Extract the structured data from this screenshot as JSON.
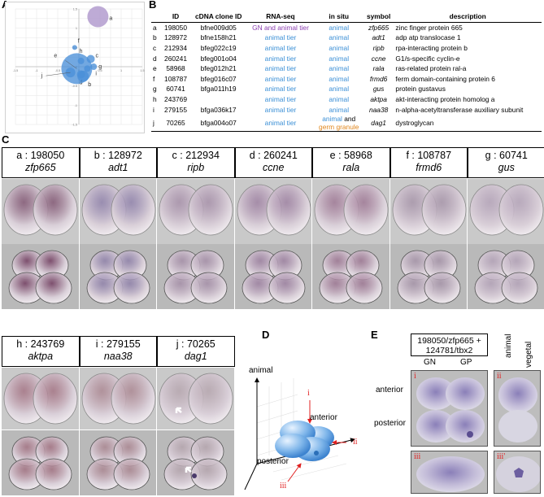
{
  "panel_labels": {
    "A": "A",
    "B": "B",
    "C": "C",
    "D": "D",
    "E": "E"
  },
  "chart_data": {
    "type": "scatter",
    "title": "",
    "xlabel": "",
    "ylabel": "",
    "xlim": [
      -1.5,
      1.5
    ],
    "ylim": [
      -1.5,
      1.5
    ],
    "x_ticks": [
      "-1.5",
      "-1",
      "-0.5",
      "0",
      "0.5",
      "1",
      "1.5"
    ],
    "y_ticks": [
      "1.5",
      "1",
      "0.5",
      "0",
      "-0.5",
      "-1",
      "-1.5"
    ],
    "grid": true,
    "points": [
      {
        "label": "a",
        "x": 0.45,
        "y": 1.3,
        "size": 12,
        "color": "#b39ccf"
      },
      {
        "label": "b",
        "x": 0.1,
        "y": -0.25,
        "size": 6,
        "color": "#4a90d9"
      },
      {
        "label": "c",
        "x": 0.28,
        "y": 0.2,
        "size": 4,
        "color": "#4a90d9"
      },
      {
        "label": "d",
        "x": 0.05,
        "y": -0.2,
        "size": 4,
        "color": "#4a90d9"
      },
      {
        "label": "e",
        "x": -0.05,
        "y": -0.05,
        "size": 18,
        "color": "#4a90d9"
      },
      {
        "label": "f",
        "x": -0.1,
        "y": 0.5,
        "size": 2,
        "color": "#4a90d9"
      },
      {
        "label": "g",
        "x": 0.35,
        "y": 0.0,
        "size": 3,
        "color": "#4a90d9"
      },
      {
        "label": "h",
        "x": 0.05,
        "y": 0.15,
        "size": 3,
        "color": "#4a90d9"
      },
      {
        "label": "i",
        "x": 0.2,
        "y": -0.05,
        "size": 3,
        "color": "#4a90d9"
      },
      {
        "label": "j",
        "x": -0.2,
        "y": -0.15,
        "size": 5,
        "color": "#4a90d9"
      }
    ]
  },
  "table": {
    "headers": [
      "",
      "ID",
      "cDNA clone ID",
      "RNA-seq",
      "in situ",
      "symbol",
      "description"
    ],
    "rows": [
      {
        "letter": "a",
        "id": "198050",
        "clone": "bfne009d05",
        "rnaseq": "GN and animal tier",
        "rnaseq_color": "purple",
        "insitu": "animal",
        "symbol": "zfp665",
        "description": "zinc finger protein 665"
      },
      {
        "letter": "b",
        "id": "128972",
        "clone": "bfne158h21",
        "rnaseq": "animal tier",
        "rnaseq_color": "blue",
        "insitu": "animal",
        "symbol": "adt1",
        "description": "adp atp translocase 1"
      },
      {
        "letter": "c",
        "id": "212934",
        "clone": "bfeg022c19",
        "rnaseq": "animal tier",
        "rnaseq_color": "blue",
        "insitu": "animal",
        "symbol": "ripb",
        "description": "rpa-interacting protein b"
      },
      {
        "letter": "d",
        "id": "260241",
        "clone": "bfeg001o04",
        "rnaseq": "animal tier",
        "rnaseq_color": "blue",
        "insitu": "animal",
        "symbol": "ccne",
        "description": "G1/s-specific cyclin-e"
      },
      {
        "letter": "e",
        "id": "58968",
        "clone": "bfeg012h21",
        "rnaseq": "animal tier",
        "rnaseq_color": "blue",
        "insitu": "animal",
        "symbol": "rala",
        "description": "ras-related protein ral-a"
      },
      {
        "letter": "f",
        "id": "108787",
        "clone": "bfeg016c07",
        "rnaseq": "animal tier",
        "rnaseq_color": "blue",
        "insitu": "animal",
        "symbol": "frmd6",
        "description": "ferm domain-containing protein 6"
      },
      {
        "letter": "g",
        "id": "60741",
        "clone": "bfga011h19",
        "rnaseq": "animal tier",
        "rnaseq_color": "blue",
        "insitu": "animal",
        "symbol": "gus",
        "description": "protein gustavus"
      },
      {
        "letter": "h",
        "id": "243769",
        "clone": "",
        "rnaseq": "animal tier",
        "rnaseq_color": "blue",
        "insitu": "animal",
        "symbol": "aktpa",
        "description": "akt-interacting protein homolog a"
      },
      {
        "letter": "i",
        "id": "279155",
        "clone": "bfga036k17",
        "rnaseq": "animal tier",
        "rnaseq_color": "blue",
        "insitu": "animal",
        "symbol": "naa38",
        "description": "n-alpha-acetyltransferase auxiliary subunit"
      }
    ],
    "last_row": {
      "letter": "j",
      "id": "70265",
      "clone": "bfga004o07",
      "rnaseq": "animal tier",
      "insitu_line1": "animal",
      "insitu_and": "and",
      "insitu_line2": "germ granule",
      "symbol": "dag1",
      "description": "dystroglycan"
    }
  },
  "panelC": {
    "row1": [
      {
        "id": "a : 198050",
        "sym": "zfp665"
      },
      {
        "id": "b : 128972",
        "sym": "adt1"
      },
      {
        "id": "c : 212934",
        "sym": "ripb"
      },
      {
        "id": "d : 260241",
        "sym": "ccne"
      },
      {
        "id": "e : 58968",
        "sym": "rala"
      },
      {
        "id": "f : 108787",
        "sym": "frmd6"
      },
      {
        "id": "g : 60741",
        "sym": "gus"
      }
    ],
    "row2": [
      {
        "id": "h : 243769",
        "sym": "aktpa"
      },
      {
        "id": "i : 279155",
        "sym": "naa38"
      },
      {
        "id": "j : 70265",
        "sym": "dag1"
      }
    ]
  },
  "panelD": {
    "animal": "animal",
    "anterior": "anterior",
    "posterior": "posterior",
    "i": "i",
    "ii": "ii",
    "iii": "iii"
  },
  "panelE": {
    "title_line1": "198050/zfp665 +",
    "title_line2": "124781/tbx2",
    "gn": "GN",
    "gp": "GP",
    "animal": "animal",
    "vegetal": "vegetal",
    "anterior": "anterior",
    "posterior": "posterior",
    "i": "i",
    "ii": "ii",
    "iii": "iii",
    "iii_prime": "iii'"
  }
}
